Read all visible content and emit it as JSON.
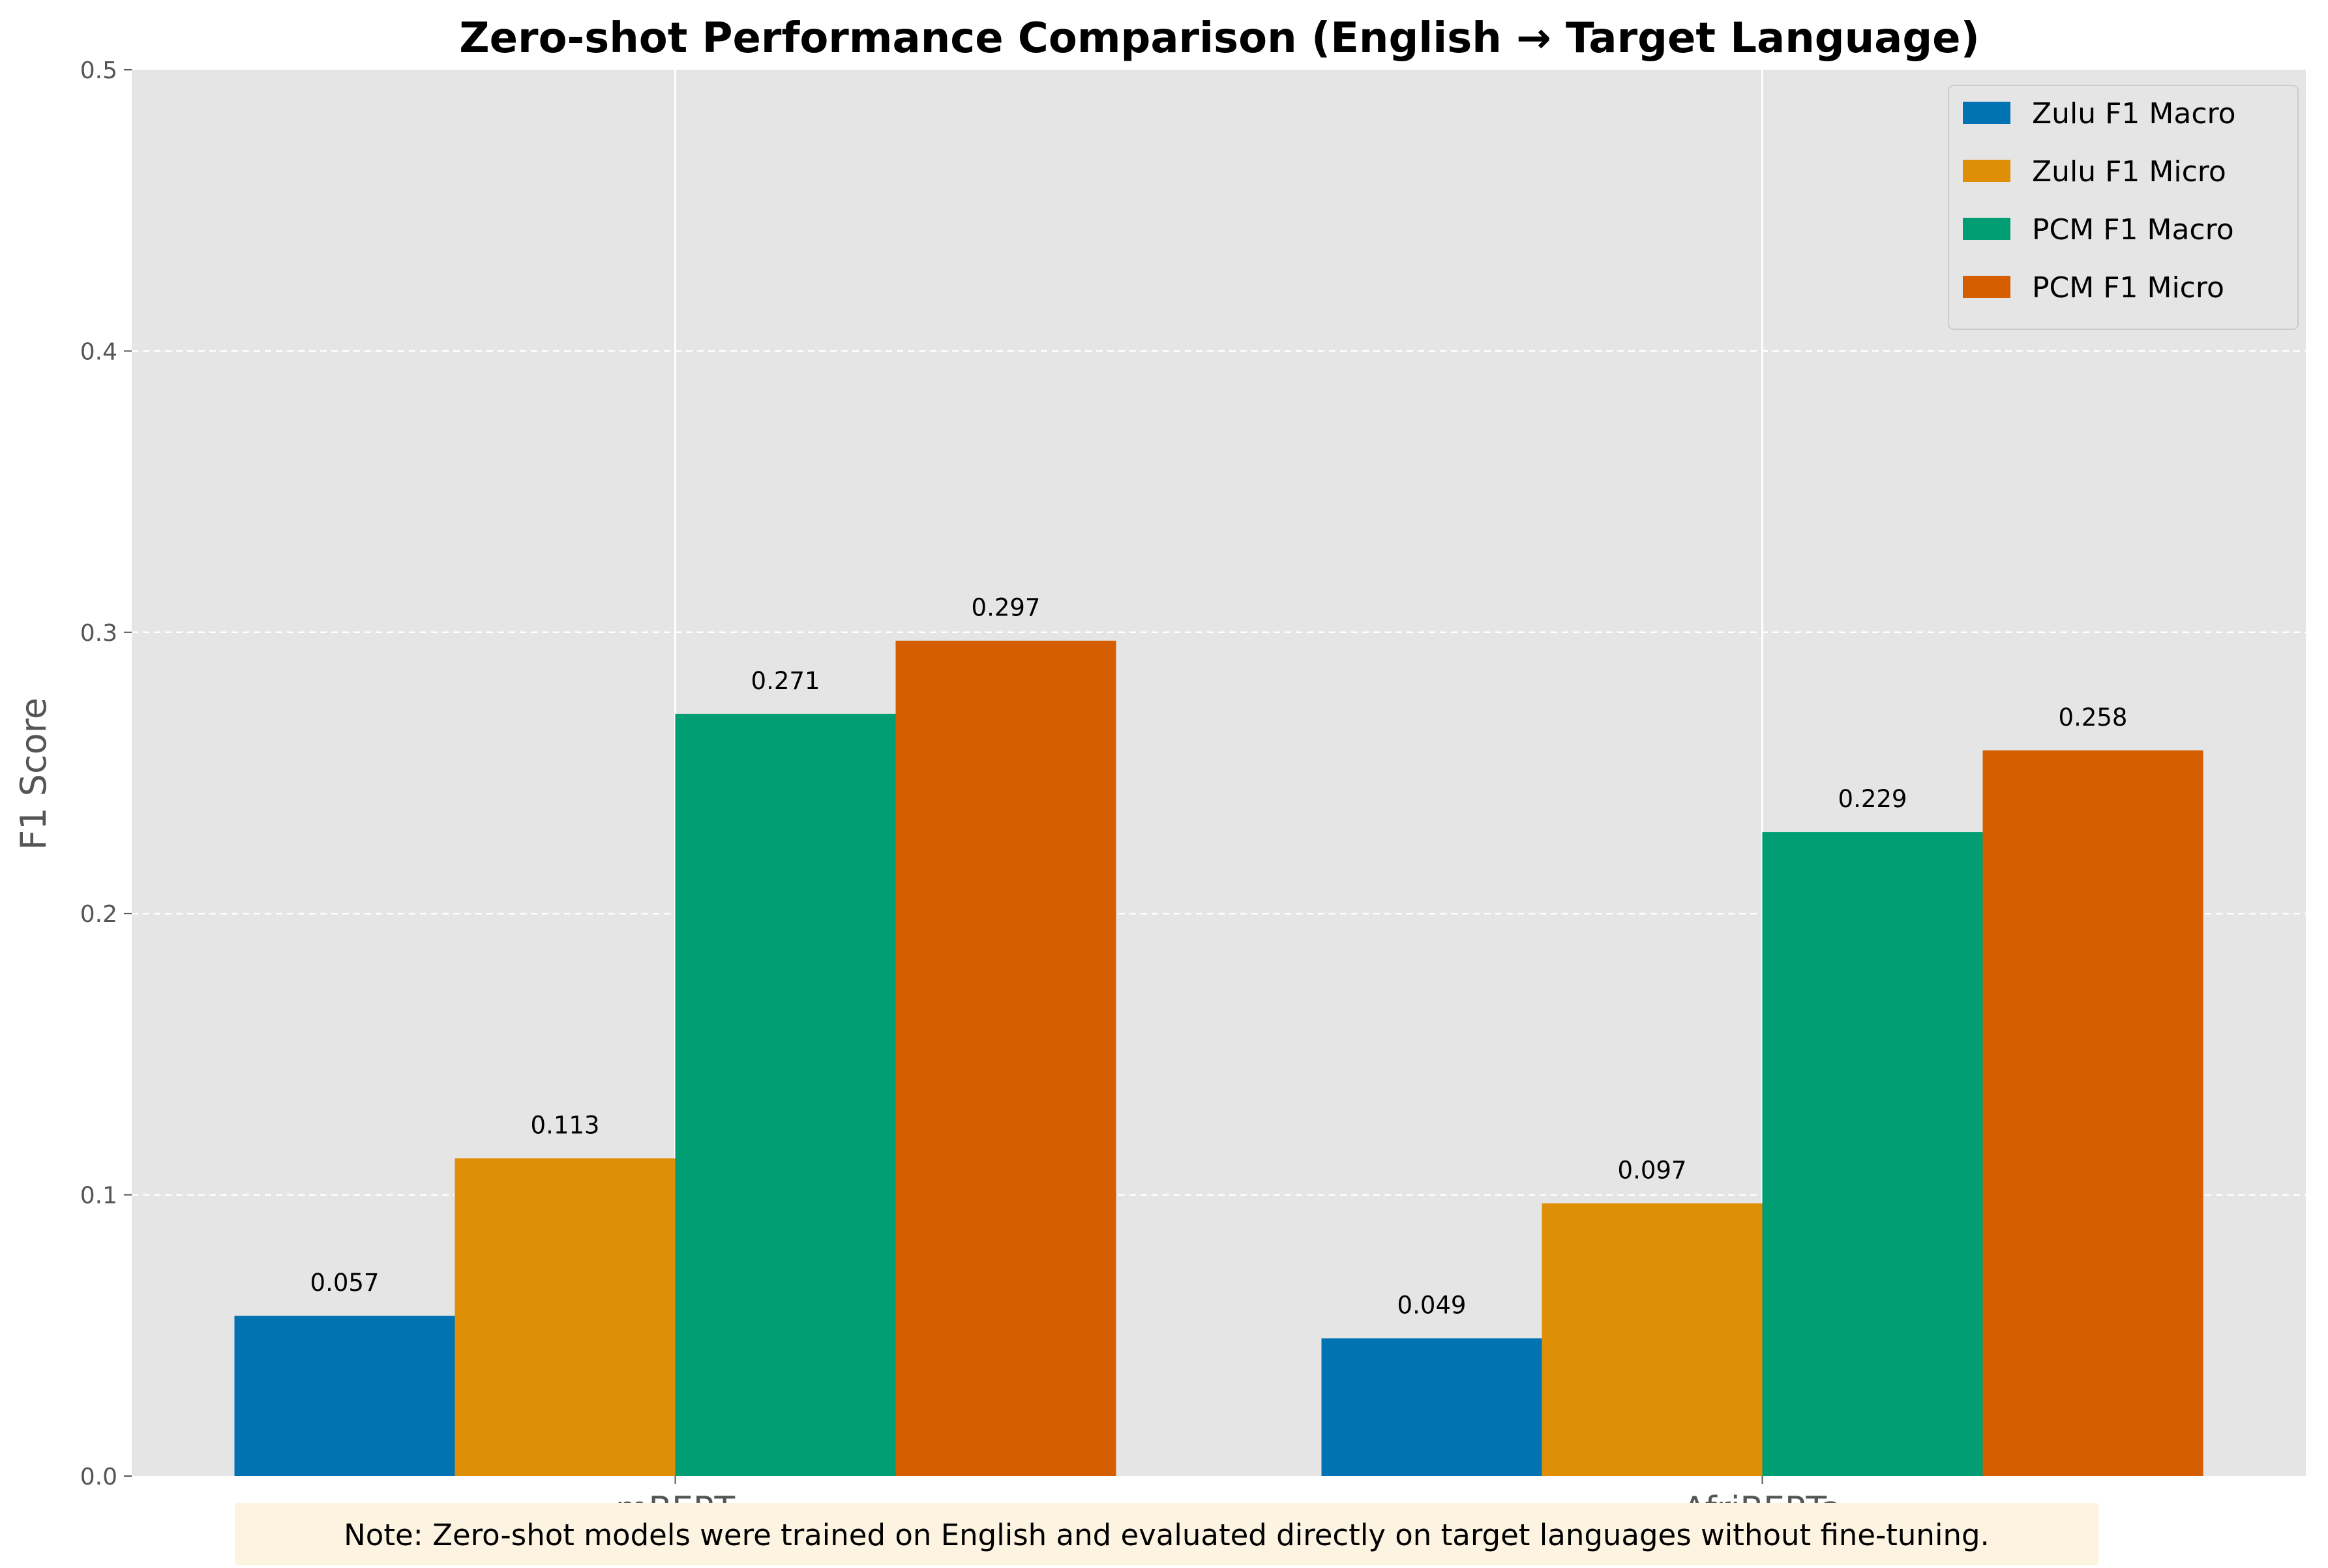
{
  "chart_data": {
    "type": "bar",
    "title": "Zero-shot Performance Comparison (English → Target Language)",
    "xlabel": "",
    "ylabel": "F1 Score",
    "categories": [
      "mBERT",
      "AfriBERTa"
    ],
    "ylim": [
      0,
      0.5
    ],
    "yticks": [
      "0.0",
      "0.1",
      "0.2",
      "0.3",
      "0.4",
      "0.5"
    ],
    "grid": true,
    "legend_position": "top-right",
    "series": [
      {
        "name": "Zulu F1 Macro",
        "color": "#0173b2",
        "values": [
          0.057,
          0.049
        ],
        "labels": [
          "0.057",
          "0.049"
        ]
      },
      {
        "name": "Zulu F1 Micro",
        "color": "#de8f05",
        "values": [
          0.113,
          0.097
        ],
        "labels": [
          "0.113",
          "0.097"
        ]
      },
      {
        "name": "PCM F1 Macro",
        "color": "#029e73",
        "values": [
          0.271,
          0.229
        ],
        "labels": [
          "0.271",
          "0.229"
        ]
      },
      {
        "name": "PCM F1 Micro",
        "color": "#d55e00",
        "values": [
          0.297,
          0.258
        ],
        "labels": [
          "0.297",
          "0.258"
        ]
      }
    ],
    "note": "Note: Zero-shot models were trained on English and evaluated directly on target languages without fine-tuning."
  },
  "colors": {
    "plot_background": "#e5e5e5",
    "note_background": "#fdf3e1"
  }
}
